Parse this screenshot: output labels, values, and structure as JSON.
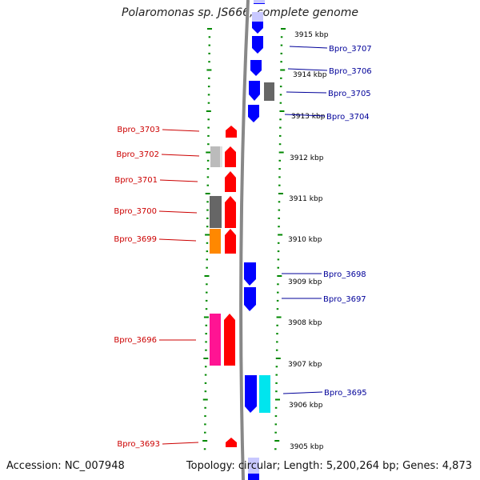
{
  "title": "Polaromonas sp. JS666, complete genome",
  "footer": {
    "accession": "Accession: NC_007948",
    "info": "Topology: circular; Length: 5,200,264 bp; Genes: 4,873"
  },
  "colors": {
    "plus_strand_gene": "#ff0000",
    "minus_strand_gene": "#0000ff",
    "plus_label": "#cc0000",
    "minus_label": "#000099",
    "tick": "#008800",
    "backbone": "#888888"
  },
  "scale_labels": [
    {
      "kbp": 3915,
      "text": "3915 kbp"
    },
    {
      "kbp": 3914,
      "text": "3914 kbp"
    },
    {
      "kbp": 3913,
      "text": "3913 kbp"
    },
    {
      "kbp": 3912,
      "text": "3912 kbp"
    },
    {
      "kbp": 3911,
      "text": "3911 kbp"
    },
    {
      "kbp": 3910,
      "text": "3910 kbp"
    },
    {
      "kbp": 3909,
      "text": "3909 kbp"
    },
    {
      "kbp": 3908,
      "text": "3908 kbp"
    },
    {
      "kbp": 3907,
      "text": "3907 kbp"
    },
    {
      "kbp": 3906,
      "text": "3906 kbp"
    },
    {
      "kbp": 3905,
      "text": "3905 kbp"
    }
  ],
  "plus_strand_genes": [
    {
      "label": "Bpro_3703"
    },
    {
      "label": "Bpro_3702"
    },
    {
      "label": "Bpro_3701"
    },
    {
      "label": "Bpro_3700"
    },
    {
      "label": "Bpro_3699"
    },
    {
      "label": "Bpro_3696"
    },
    {
      "label": "Bpro_3693"
    }
  ],
  "minus_strand_genes": [
    {
      "label": "Bpro_3707"
    },
    {
      "label": "Bpro_3706"
    },
    {
      "label": "Bpro_3705"
    },
    {
      "label": "Bpro_3704"
    },
    {
      "label": "Bpro_3698"
    },
    {
      "label": "Bpro_3697"
    },
    {
      "label": "Bpro_3695"
    }
  ]
}
